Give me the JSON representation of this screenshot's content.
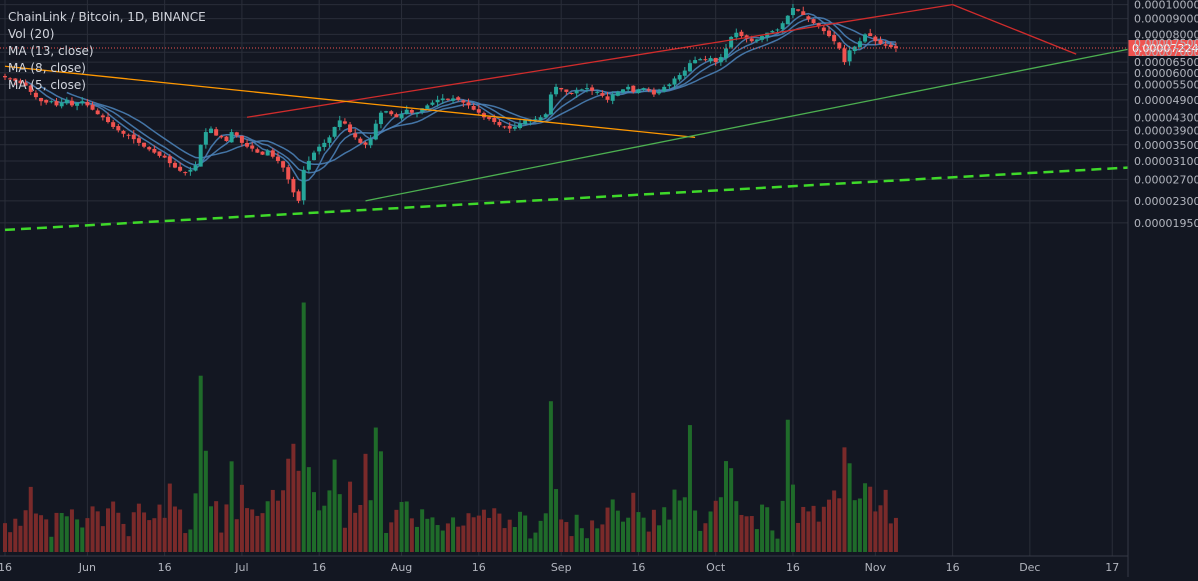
{
  "colors": {
    "background": "#131722",
    "grid": "#2a2e39",
    "axis_text": "#b2b5be",
    "candle_up": "#26a69a",
    "candle_down": "#ef5350",
    "volume_up": "#1f6b2a",
    "volume_down": "#7a2a2a",
    "ma_line": "#4a7fb5",
    "current_price_bg": "#ef5350",
    "trend_red": "#d02c2c",
    "trend_orange": "#ff9800",
    "trend_green": "#4caf50",
    "trend_green_dashed": "#3fd92a"
  },
  "legend": {
    "title": "ChainLink / Bitcoin, 1D, BINANCE",
    "vol": "Vol (20)",
    "ma13": "MA (13, close)",
    "ma8": "MA (8, close)",
    "ma5": "MA (5, close)"
  },
  "chart_data": {
    "type": "candlestick",
    "symbol": "ChainLink / Bitcoin",
    "interval": "1D",
    "exchange": "BINANCE",
    "y_scale": "log",
    "ylim": [
      1.8e-06,
      0.0001012
    ],
    "y_ticks": [
      "0.00010000",
      "0.00009000",
      "0.00008000",
      "0.00007500",
      "0.00007000",
      "0.00006500",
      "0.00006000",
      "0.00005500",
      "0.00004900",
      "0.00004300",
      "0.00003900",
      "0.00003500",
      "0.00003100",
      "0.00002700",
      "0.00002300",
      "0.00001950"
    ],
    "x_ticks": [
      "16",
      "Jun",
      "16",
      "Jul",
      "16",
      "Aug",
      "16",
      "Sep",
      "16",
      "Oct",
      "16",
      "Nov",
      "16",
      "Dec",
      "17"
    ],
    "current_price": "0.00007224",
    "start_date": "2019-05-16",
    "moving_averages": [
      "MA (13, close)",
      "MA (8, close)",
      "MA (5, close)"
    ],
    "volume_indicator": "Vol (20)",
    "closes": [
      5.8e-05,
      5.75e-05,
      5.65e-05,
      5.55e-05,
      5.45e-05,
      5.2e-05,
      5e-05,
      4.85e-05,
      4.8e-05,
      4.85e-05,
      4.7e-05,
      4.8e-05,
      4.9e-05,
      4.7e-05,
      4.8e-05,
      4.85e-05,
      4.7e-05,
      4.55e-05,
      4.4e-05,
      4.3e-05,
      4.15e-05,
      4e-05,
      3.9e-05,
      3.8e-05,
      3.75e-05,
      3.65e-05,
      3.55e-05,
      3.45e-05,
      3.38e-05,
      3.3e-05,
      3.22e-05,
      3.18e-05,
      3.05e-05,
      2.95e-05,
      2.88e-05,
      2.85e-05,
      2.9e-05,
      3e-05,
      3.5e-05,
      3.85e-05,
      3.95e-05,
      3.75e-05,
      3.7e-05,
      3.6e-05,
      3.85e-05,
      3.75e-05,
      3.55e-05,
      3.45e-05,
      3.4e-05,
      3.3e-05,
      3.25e-05,
      3.35e-05,
      3.2e-05,
      3.1e-05,
      2.95e-05,
      2.7e-05,
      2.45e-05,
      2.3e-05,
      2.9e-05,
      3.1e-05,
      3.3e-05,
      3.45e-05,
      3.55e-05,
      3.7e-05,
      4e-05,
      4.2e-05,
      4.1e-05,
      3.85e-05,
      3.7e-05,
      3.55e-05,
      3.5e-05,
      3.65e-05,
      4.1e-05,
      4.45e-05,
      4.5e-05,
      4.4e-05,
      4.3e-05,
      4.4e-05,
      4.55e-05,
      4.45e-05,
      4.45e-05,
      4.6e-05,
      4.7e-05,
      4.8e-05,
      4.9e-05,
      4.95e-05,
      4.9e-05,
      4.95e-05,
      4.9e-05,
      4.8e-05,
      4.7e-05,
      4.55e-05,
      4.45e-05,
      4.3e-05,
      4.25e-05,
      4.15e-05,
      4.05e-05,
      4e-05,
      3.95e-05,
      4e-05,
      4.1e-05,
      4.2e-05,
      4.2e-05,
      4.25e-05,
      4.3e-05,
      4.4e-05,
      5.1e-05,
      5.4e-05,
      5.3e-05,
      5.2e-05,
      5.15e-05,
      5.25e-05,
      5.3e-05,
      5.35e-05,
      5.25e-05,
      5.2e-05,
      5.05e-05,
      4.9e-05,
      5.1e-05,
      5.2e-05,
      5.3e-05,
      5.4e-05,
      5.2e-05,
      5.3e-05,
      5.35e-05,
      5.25e-05,
      5.1e-05,
      5.2e-05,
      5.4e-05,
      5.5e-05,
      5.75e-05,
      5.9e-05,
      6.1e-05,
      6.45e-05,
      6.6e-05,
      6.65e-05,
      6.6e-05,
      6.7e-05,
      6.5e-05,
      6.75e-05,
      7.2e-05,
      7.85e-05,
      8.1e-05,
      7.9e-05,
      7.75e-05,
      7.6e-05,
      7.7e-05,
      7.9e-05,
      8.1e-05,
      8.2e-05,
      8.3e-05,
      8.7e-05,
      9.2e-05,
      9.75e-05,
      9.55e-05,
      9.25e-05,
      8.95e-05,
      8.7e-05,
      8.5e-05,
      8.2e-05,
      7.9e-05,
      7.6e-05,
      7.2e-05,
      6.5e-05,
      7.1e-05,
      7.3e-05,
      7.6e-05,
      8e-05,
      7.9e-05,
      7.6e-05,
      7.45e-05,
      7.35e-05,
      7.28e-05,
      7.22e-05
    ],
    "trendlines": [
      {
        "color": "red",
        "from": [
          "2019-07-02",
          4.3e-05
        ],
        "to": [
          "2019-11-16",
          0.0001
        ]
      },
      {
        "color": "red",
        "from": [
          "2019-11-16",
          0.0001
        ],
        "to": [
          "2019-12-10",
          6.9e-05
        ]
      },
      {
        "color": "orange",
        "from": [
          "2019-05-16",
          6.3e-05
        ],
        "to": [
          "2019-09-27",
          3.7e-05
        ]
      },
      {
        "color": "green",
        "from": [
          "2019-07-25",
          2.3e-05
        ],
        "to": [
          "2019-12-20",
          7.15e-05
        ]
      },
      {
        "color": "green-dashed",
        "from": [
          "2019-05-16",
          1.85e-05
        ],
        "to": [
          "2019-12-20",
          2.95e-05
        ]
      }
    ]
  }
}
